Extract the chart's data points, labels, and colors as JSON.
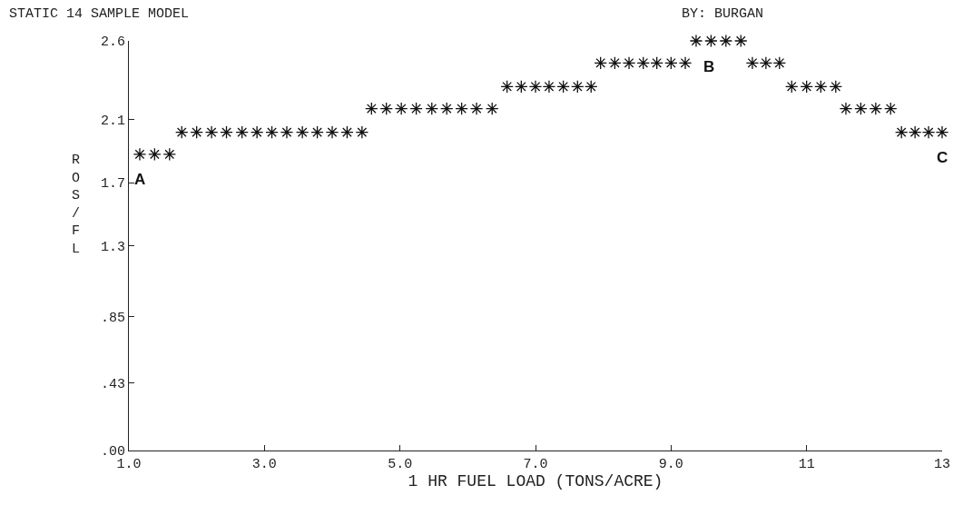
{
  "chart_data": {
    "type": "scatter",
    "title": "STATIC 14 SAMPLE MODEL",
    "subtitle": "BY: BURGAN",
    "xlabel": "1 HR FUEL LOAD (TONS/ACRE)",
    "ylabel": "ROS/FL",
    "x": [
      1.16,
      1.38,
      1.6,
      1.78,
      2.0,
      2.22,
      2.44,
      2.67,
      2.89,
      3.11,
      3.33,
      3.56,
      3.78,
      4.0,
      4.22,
      4.44,
      4.58,
      4.8,
      5.02,
      5.24,
      5.47,
      5.69,
      5.91,
      6.13,
      6.36,
      6.58,
      6.79,
      7.0,
      7.2,
      7.41,
      7.62,
      7.82,
      7.96,
      8.17,
      8.38,
      8.59,
      8.79,
      9.0,
      9.21,
      9.37,
      9.59,
      9.81,
      10.03,
      10.2,
      10.4,
      10.6,
      10.78,
      11.0,
      11.21,
      11.43,
      11.58,
      11.8,
      12.02,
      12.24,
      12.4,
      12.6,
      12.8,
      13.0
    ],
    "series": [
      {
        "color": "#111111",
        "values": [
          1.88,
          1.88,
          1.88,
          2.02,
          2.02,
          2.02,
          2.02,
          2.02,
          2.02,
          2.02,
          2.02,
          2.02,
          2.02,
          2.02,
          2.02,
          2.02,
          2.17,
          2.17,
          2.17,
          2.17,
          2.17,
          2.17,
          2.17,
          2.17,
          2.17,
          2.31,
          2.31,
          2.31,
          2.31,
          2.31,
          2.31,
          2.31,
          2.46,
          2.46,
          2.46,
          2.46,
          2.46,
          2.46,
          2.46,
          2.6,
          2.6,
          2.6,
          2.6,
          2.46,
          2.46,
          2.46,
          2.31,
          2.31,
          2.31,
          2.31,
          2.17,
          2.17,
          2.17,
          2.17,
          2.02,
          2.02,
          2.02,
          2.02
        ]
      }
    ],
    "marker": "cross",
    "xlim": [
      1,
      13
    ],
    "ylim": [
      0,
      2.6
    ],
    "xticks": [
      {
        "value": 1,
        "label": "1.0"
      },
      {
        "value": 3,
        "label": "3.0"
      },
      {
        "value": 5,
        "label": "5.0"
      },
      {
        "value": 7,
        "label": "7.0"
      },
      {
        "value": 9,
        "label": "9.0"
      },
      11,
      13
    ],
    "yticks": [
      {
        "value": 0,
        "label": ".00"
      },
      {
        "value": 0.43,
        "label": ".43"
      },
      {
        "value": 0.85,
        "label": ".85"
      },
      1.3,
      1.7,
      2.1,
      2.6
    ],
    "annotations": [
      "A",
      "B",
      "C"
    ]
  }
}
